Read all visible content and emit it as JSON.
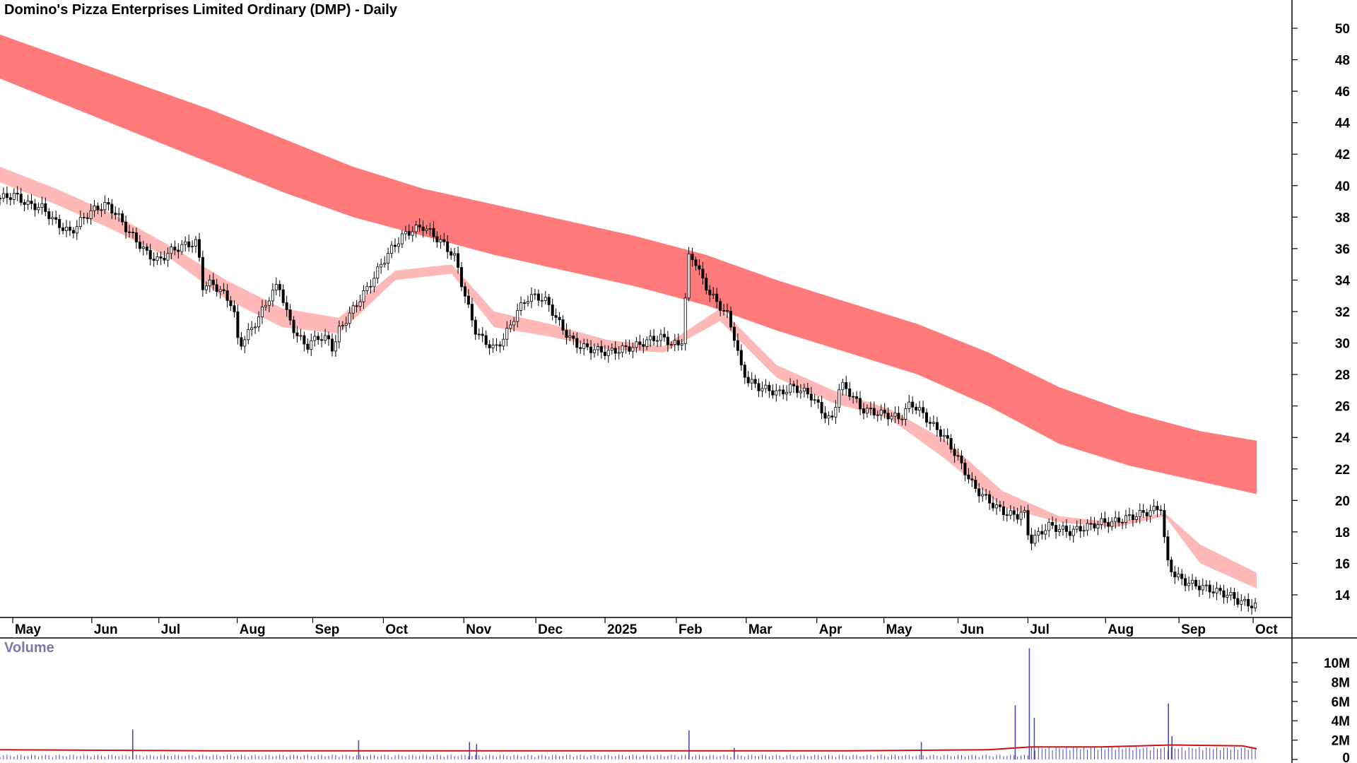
{
  "chart_data": [
    {
      "type": "candlestick",
      "title": "Domino's Pizza Enterprises Limited Ordinary (DMP) - Daily",
      "ylim": [
        12.5,
        51.5
      ],
      "y_ticks": [
        14,
        16,
        18,
        20,
        22,
        24,
        26,
        28,
        30,
        32,
        34,
        36,
        38,
        40,
        42,
        44,
        46,
        48,
        50
      ],
      "y_tick_labels": [
        "14",
        "16",
        "18",
        "20",
        "22",
        "24",
        "26",
        "28",
        "30",
        "32",
        "34",
        "36",
        "38",
        "40",
        "42",
        "44",
        "46",
        "48",
        "50"
      ],
      "x_range": [
        0,
        1830
      ],
      "x_ticks": [
        {
          "label": "May",
          "x": 18
        },
        {
          "label": "Jun",
          "x": 130
        },
        {
          "label": "Jul",
          "x": 225
        },
        {
          "label": "Aug",
          "x": 336
        },
        {
          "label": "Sep",
          "x": 443
        },
        {
          "label": "Oct",
          "x": 543
        },
        {
          "label": "Nov",
          "x": 657
        },
        {
          "label": "Dec",
          "x": 759
        },
        {
          "label": "2025",
          "x": 857
        },
        {
          "label": "Feb",
          "x": 958
        },
        {
          "label": "Mar",
          "x": 1057
        },
        {
          "label": "Apr",
          "x": 1157
        },
        {
          "label": "May",
          "x": 1252
        },
        {
          "label": "Jun",
          "x": 1357
        },
        {
          "label": "Jul",
          "x": 1456
        },
        {
          "label": "Aug",
          "x": 1566
        },
        {
          "label": "Sep",
          "x": 1670
        },
        {
          "label": "Oct",
          "x": 1775
        }
      ],
      "price": [
        [
          0,
          39.2
        ],
        [
          20,
          39.4
        ],
        [
          40,
          38.8
        ],
        [
          60,
          38.6
        ],
        [
          80,
          37.6
        ],
        [
          100,
          37.0
        ],
        [
          115,
          37.8
        ],
        [
          130,
          38.4
        ],
        [
          150,
          38.8
        ],
        [
          165,
          38.2
        ],
        [
          180,
          37.2
        ],
        [
          195,
          36.4
        ],
        [
          210,
          35.6
        ],
        [
          225,
          35.2
        ],
        [
          240,
          35.8
        ],
        [
          260,
          36.2
        ],
        [
          280,
          36.4
        ],
        [
          286,
          33.6
        ],
        [
          300,
          33.8
        ],
        [
          315,
          33.2
        ],
        [
          330,
          32.4
        ],
        [
          338,
          29.8
        ],
        [
          350,
          30.5
        ],
        [
          365,
          31.5
        ],
        [
          380,
          32.8
        ],
        [
          395,
          33.8
        ],
        [
          405,
          32.0
        ],
        [
          420,
          30.5
        ],
        [
          435,
          29.8
        ],
        [
          450,
          30.4
        ],
        [
          465,
          30.2
        ],
        [
          472,
          29.6
        ],
        [
          480,
          30.8
        ],
        [
          495,
          31.8
        ],
        [
          510,
          32.8
        ],
        [
          525,
          33.8
        ],
        [
          540,
          35.0
        ],
        [
          555,
          36.0
        ],
        [
          570,
          36.8
        ],
        [
          585,
          37.2
        ],
        [
          600,
          37.4
        ],
        [
          615,
          36.8
        ],
        [
          630,
          36.2
        ],
        [
          645,
          35.4
        ],
        [
          655,
          33.6
        ],
        [
          665,
          32.0
        ],
        [
          675,
          30.6
        ],
        [
          690,
          30.0
        ],
        [
          700,
          29.6
        ],
        [
          715,
          30.4
        ],
        [
          730,
          31.8
        ],
        [
          745,
          32.8
        ],
        [
          760,
          33.0
        ],
        [
          775,
          32.6
        ],
        [
          790,
          31.4
        ],
        [
          805,
          30.4
        ],
        [
          820,
          29.8
        ],
        [
          840,
          29.6
        ],
        [
          860,
          29.4
        ],
        [
          880,
          29.6
        ],
        [
          900,
          29.8
        ],
        [
          920,
          30.2
        ],
        [
          935,
          30.4
        ],
        [
          950,
          30.0
        ],
        [
          965,
          29.8
        ],
        [
          976,
          35.6
        ],
        [
          985,
          35.2
        ],
        [
          995,
          34.0
        ],
        [
          1005,
          33.2
        ],
        [
          1015,
          32.6
        ],
        [
          1030,
          31.8
        ],
        [
          1040,
          30.4
        ],
        [
          1050,
          28.4
        ],
        [
          1060,
          27.6
        ],
        [
          1075,
          27.2
        ],
        [
          1090,
          27.0
        ],
        [
          1105,
          26.8
        ],
        [
          1120,
          27.2
        ],
        [
          1135,
          27.0
        ],
        [
          1150,
          26.6
        ],
        [
          1165,
          25.6
        ],
        [
          1178,
          25.0
        ],
        [
          1190,
          27.4
        ],
        [
          1205,
          26.8
        ],
        [
          1220,
          25.8
        ],
        [
          1240,
          25.6
        ],
        [
          1260,
          25.4
        ],
        [
          1275,
          25.2
        ],
        [
          1290,
          26.2
        ],
        [
          1305,
          25.6
        ],
        [
          1320,
          24.8
        ],
        [
          1335,
          24.2
        ],
        [
          1350,
          23.2
        ],
        [
          1365,
          22.0
        ],
        [
          1380,
          20.8
        ],
        [
          1395,
          20.2
        ],
        [
          1410,
          19.6
        ],
        [
          1425,
          19.2
        ],
        [
          1440,
          19.0
        ],
        [
          1450,
          19.4
        ],
        [
          1458,
          17.4
        ],
        [
          1470,
          17.8
        ],
        [
          1485,
          18.4
        ],
        [
          1500,
          18.2
        ],
        [
          1515,
          18.0
        ],
        [
          1530,
          18.2
        ],
        [
          1545,
          18.4
        ],
        [
          1560,
          18.6
        ],
        [
          1575,
          18.6
        ],
        [
          1590,
          18.8
        ],
        [
          1605,
          19.0
        ],
        [
          1620,
          19.2
        ],
        [
          1635,
          19.4
        ],
        [
          1645,
          19.6
        ],
        [
          1652,
          16.2
        ],
        [
          1665,
          15.2
        ],
        [
          1680,
          14.8
        ],
        [
          1695,
          14.6
        ],
        [
          1710,
          14.4
        ],
        [
          1725,
          14.2
        ],
        [
          1740,
          14.0
        ],
        [
          1755,
          13.6
        ],
        [
          1770,
          13.4
        ],
        [
          1778,
          13.3
        ]
      ],
      "upper_band_top": [
        [
          0,
          49.6
        ],
        [
          100,
          48.0
        ],
        [
          200,
          46.4
        ],
        [
          300,
          44.8
        ],
        [
          400,
          43.0
        ],
        [
          500,
          41.2
        ],
        [
          600,
          39.8
        ],
        [
          700,
          38.8
        ],
        [
          800,
          37.8
        ],
        [
          900,
          36.8
        ],
        [
          1000,
          35.6
        ],
        [
          1100,
          34.0
        ],
        [
          1200,
          32.6
        ],
        [
          1300,
          31.2
        ],
        [
          1400,
          29.4
        ],
        [
          1500,
          27.2
        ],
        [
          1600,
          25.6
        ],
        [
          1700,
          24.4
        ],
        [
          1780,
          23.8
        ]
      ],
      "upper_band_bottom": [
        [
          0,
          46.8
        ],
        [
          100,
          45.0
        ],
        [
          200,
          43.2
        ],
        [
          300,
          41.4
        ],
        [
          400,
          39.6
        ],
        [
          500,
          38.0
        ],
        [
          600,
          36.8
        ],
        [
          700,
          35.6
        ],
        [
          800,
          34.6
        ],
        [
          900,
          33.6
        ],
        [
          1000,
          32.4
        ],
        [
          1100,
          30.8
        ],
        [
          1200,
          29.4
        ],
        [
          1300,
          28.0
        ],
        [
          1400,
          26.0
        ],
        [
          1500,
          23.6
        ],
        [
          1600,
          22.2
        ],
        [
          1700,
          21.2
        ],
        [
          1780,
          20.4
        ]
      ],
      "lower_band_top": [
        [
          0,
          41.2
        ],
        [
          80,
          39.8
        ],
        [
          160,
          38.2
        ],
        [
          240,
          36.2
        ],
        [
          320,
          34.0
        ],
        [
          400,
          32.2
        ],
        [
          480,
          31.6
        ],
        [
          560,
          34.6
        ],
        [
          640,
          35.0
        ],
        [
          700,
          32.0
        ],
        [
          780,
          31.2
        ],
        [
          860,
          30.2
        ],
        [
          940,
          29.8
        ],
        [
          1020,
          32.2
        ],
        [
          1100,
          28.6
        ],
        [
          1180,
          27.0
        ],
        [
          1260,
          25.8
        ],
        [
          1340,
          23.8
        ],
        [
          1420,
          20.6
        ],
        [
          1500,
          19.0
        ],
        [
          1580,
          18.6
        ],
        [
          1650,
          19.2
        ],
        [
          1700,
          17.2
        ],
        [
          1780,
          15.4
        ]
      ],
      "lower_band_bottom": [
        [
          0,
          40.2
        ],
        [
          80,
          38.8
        ],
        [
          160,
          37.2
        ],
        [
          240,
          35.4
        ],
        [
          320,
          32.8
        ],
        [
          400,
          31.0
        ],
        [
          480,
          30.6
        ],
        [
          560,
          34.0
        ],
        [
          640,
          34.4
        ],
        [
          700,
          31.0
        ],
        [
          780,
          30.4
        ],
        [
          860,
          29.6
        ],
        [
          940,
          29.4
        ],
        [
          1020,
          31.4
        ],
        [
          1100,
          27.8
        ],
        [
          1180,
          26.2
        ],
        [
          1260,
          25.2
        ],
        [
          1340,
          22.6
        ],
        [
          1420,
          19.6
        ],
        [
          1500,
          18.6
        ],
        [
          1580,
          18.3
        ],
        [
          1650,
          19.0
        ],
        [
          1700,
          16.0
        ],
        [
          1780,
          14.4
        ]
      ]
    },
    {
      "type": "bar",
      "title": "Volume",
      "ylim": [
        0,
        12.0
      ],
      "y_ticks": [
        0,
        2,
        4,
        6,
        8,
        10
      ],
      "y_tick_labels": [
        "0",
        "2M",
        "4M",
        "6M",
        "8M",
        "10M"
      ],
      "volume_ma": [
        [
          0,
          1.0
        ],
        [
          300,
          0.9
        ],
        [
          600,
          0.9
        ],
        [
          900,
          0.9
        ],
        [
          1200,
          0.9
        ],
        [
          1400,
          1.0
        ],
        [
          1460,
          1.3
        ],
        [
          1560,
          1.3
        ],
        [
          1660,
          1.5
        ],
        [
          1760,
          1.4
        ],
        [
          1780,
          1.1
        ]
      ],
      "spikes": [
        [
          188,
          3.1
        ],
        [
          508,
          2.0
        ],
        [
          665,
          1.8
        ],
        [
          675,
          1.6
        ],
        [
          976,
          3.0
        ],
        [
          1040,
          1.2
        ],
        [
          1305,
          1.8
        ],
        [
          1438,
          5.6
        ],
        [
          1458,
          11.5
        ],
        [
          1465,
          4.3
        ],
        [
          1655,
          5.8
        ],
        [
          1660,
          2.4
        ]
      ]
    }
  ]
}
